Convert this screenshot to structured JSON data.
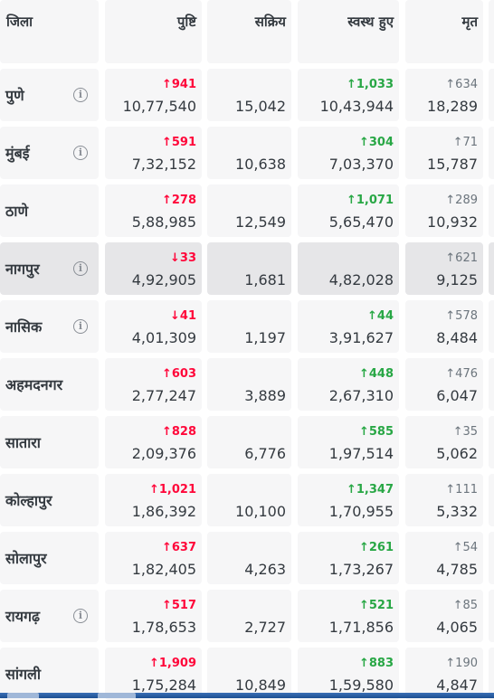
{
  "headers": {
    "district": "जिला",
    "confirmed": "पुष्टि",
    "active": "सक्रिय",
    "recovered": "स्वस्थ हुए",
    "deceased": "मृत"
  },
  "colors": {
    "red": "#ff073a",
    "green": "#28a745",
    "grey": "#6c757d"
  },
  "rows": [
    {
      "name": "पुणे",
      "info": true,
      "confirmed_delta": "↑941",
      "confirmed": "10,77,540",
      "active": "15,042",
      "recovered_delta": "↑1,033",
      "recovered": "10,43,944",
      "deceased_delta": "↑634",
      "deceased": "18,289"
    },
    {
      "name": "मुंबई",
      "info": true,
      "confirmed_delta": "↑591",
      "confirmed": "7,32,152",
      "active": "10,638",
      "recovered_delta": "↑304",
      "recovered": "7,03,370",
      "deceased_delta": "↑71",
      "deceased": "15,787"
    },
    {
      "name": "ठाणे",
      "info": false,
      "confirmed_delta": "↑278",
      "confirmed": "5,88,985",
      "active": "12,549",
      "recovered_delta": "↑1,071",
      "recovered": "5,65,470",
      "deceased_delta": "↑289",
      "deceased": "10,932"
    },
    {
      "name": "नागपुर",
      "info": true,
      "confirmed_delta": "↓33",
      "confirmed": "4,92,905",
      "active": "1,681",
      "recovered_delta": "",
      "recovered": "4,82,028",
      "deceased_delta": "↑621",
      "deceased": "9,125"
    },
    {
      "name": "नासिक",
      "info": true,
      "confirmed_delta": "↓41",
      "confirmed": "4,01,309",
      "active": "1,197",
      "recovered_delta": "↑44",
      "recovered": "3,91,627",
      "deceased_delta": "↑578",
      "deceased": "8,484"
    },
    {
      "name": "अहमदनगर",
      "info": false,
      "confirmed_delta": "↑603",
      "confirmed": "2,77,247",
      "active": "3,889",
      "recovered_delta": "↑448",
      "recovered": "2,67,310",
      "deceased_delta": "↑476",
      "deceased": "6,047"
    },
    {
      "name": "सातारा",
      "info": false,
      "confirmed_delta": "↑828",
      "confirmed": "2,09,376",
      "active": "6,776",
      "recovered_delta": "↑585",
      "recovered": "1,97,514",
      "deceased_delta": "↑35",
      "deceased": "5,062"
    },
    {
      "name": "कोल्हापुर",
      "info": false,
      "confirmed_delta": "↑1,021",
      "confirmed": "1,86,392",
      "active": "10,100",
      "recovered_delta": "↑1,347",
      "recovered": "1,70,955",
      "deceased_delta": "↑111",
      "deceased": "5,332"
    },
    {
      "name": "सोलापुर",
      "info": false,
      "confirmed_delta": "↑637",
      "confirmed": "1,82,405",
      "active": "4,263",
      "recovered_delta": "↑261",
      "recovered": "1,73,267",
      "deceased_delta": "↑54",
      "deceased": "4,785"
    },
    {
      "name": "रायगढ़",
      "info": true,
      "confirmed_delta": "↑517",
      "confirmed": "1,78,653",
      "active": "2,727",
      "recovered_delta": "↑521",
      "recovered": "1,71,856",
      "deceased_delta": "↑85",
      "deceased": "4,065"
    },
    {
      "name": "सांगली",
      "info": false,
      "confirmed_delta": "↑1,909",
      "confirmed": "1,75,284",
      "active": "10,849",
      "recovered_delta": "↑883",
      "recovered": "1,59,580",
      "deceased_delta": "↑190",
      "deceased": "4,847"
    }
  ],
  "highlighted_row": 3
}
